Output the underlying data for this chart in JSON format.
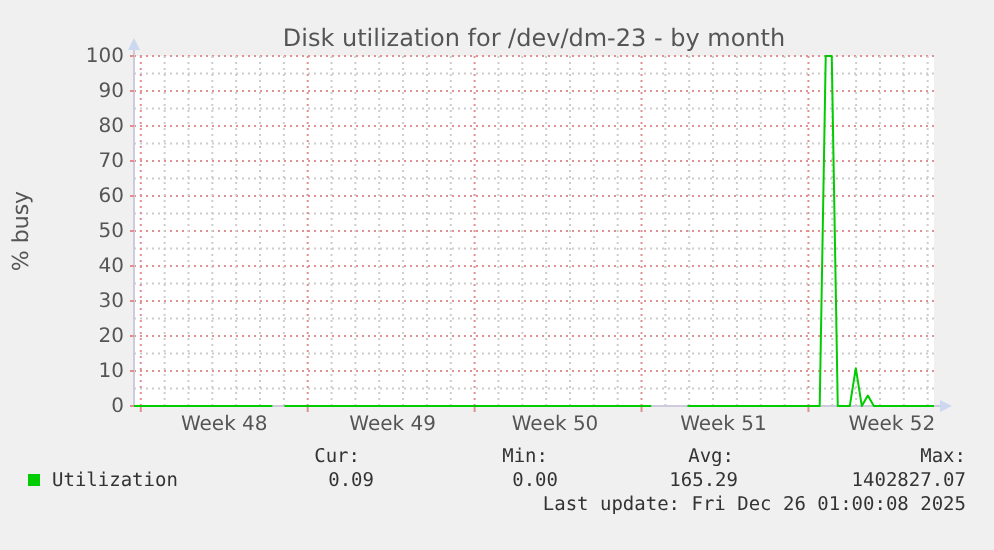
{
  "chart_data": {
    "type": "line",
    "title": "Disk utilization for /dev/dm-23 - by month",
    "ylabel": "% busy",
    "categories": [
      null,
      null,
      null,
      null,
      null,
      null,
      null,
      null,
      null,
      null,
      null,
      null,
      null,
      null,
      null,
      "Week 48",
      null,
      null,
      null,
      null,
      null,
      null,
      null,
      null,
      null,
      null,
      null,
      null,
      null,
      null,
      null,
      null,
      null,
      null,
      null,
      null,
      null,
      null,
      null,
      null,
      null,
      null,
      null,
      "Week 49",
      null,
      null,
      null,
      null,
      null,
      null,
      null,
      null,
      null,
      null,
      null,
      null,
      null,
      null,
      null,
      null,
      null,
      null,
      null,
      null,
      null,
      null,
      null,
      null,
      null,
      null,
      "Week 50",
      null,
      null,
      null,
      null,
      null,
      null,
      null,
      null,
      null,
      null,
      null,
      null,
      null,
      null,
      null,
      null,
      null,
      null,
      null,
      null,
      null,
      null,
      null,
      null,
      null,
      null,
      null,
      "Week 51",
      null,
      null,
      null,
      null,
      null,
      null,
      null,
      null,
      null,
      null,
      null,
      null,
      null,
      null,
      null,
      null,
      null,
      null,
      null,
      null,
      null,
      null,
      null,
      null,
      null,
      null,
      null,
      "Week 52",
      null,
      null,
      null,
      null,
      null,
      null,
      null
    ],
    "series": [
      {
        "name": "Utilization",
        "color": "#00cc00",
        "values": [
          0,
          0,
          0,
          0,
          0,
          0,
          0,
          0,
          0,
          0,
          0,
          0,
          0,
          0,
          0,
          0,
          0,
          0,
          0,
          0,
          0,
          0,
          0,
          0,
          null,
          0,
          0,
          0,
          0,
          0,
          0,
          0,
          0,
          0,
          0,
          0,
          0,
          0,
          0,
          0,
          0,
          0,
          0,
          0,
          0,
          0,
          0,
          0,
          0,
          0,
          0,
          0,
          0,
          0,
          0,
          0,
          0,
          0,
          0,
          0,
          0,
          0,
          0,
          0,
          0,
          0,
          0,
          0,
          0,
          0,
          0,
          0,
          0,
          0,
          0,
          0,
          0,
          0,
          0,
          0,
          0,
          0,
          0,
          0,
          0,
          0,
          0,
          null,
          null,
          null,
          null,
          null,
          0,
          0,
          0,
          0,
          0,
          0,
          0,
          0,
          0,
          0,
          0,
          0,
          0,
          0,
          0,
          0,
          0,
          0,
          0,
          0,
          0,
          0,
          0,
          100,
          100,
          0,
          0,
          0,
          10.8,
          0,
          3,
          0,
          0,
          0,
          0,
          0,
          0,
          0,
          0,
          0,
          0,
          0
        ]
      }
    ],
    "ylim": [
      0,
      100
    ],
    "yticks": [
      0,
      10,
      20,
      30,
      40,
      50,
      60,
      70,
      80,
      90,
      100
    ],
    "grid": true,
    "legend": "bottom",
    "annotations": [
      "Cur:",
      "Min:",
      "Avg:",
      "Max:",
      "0.09",
      "0.00",
      "165.29",
      "1402827.07",
      "Last update: Fri Dec 26 01:00:08 2025"
    ]
  }
}
